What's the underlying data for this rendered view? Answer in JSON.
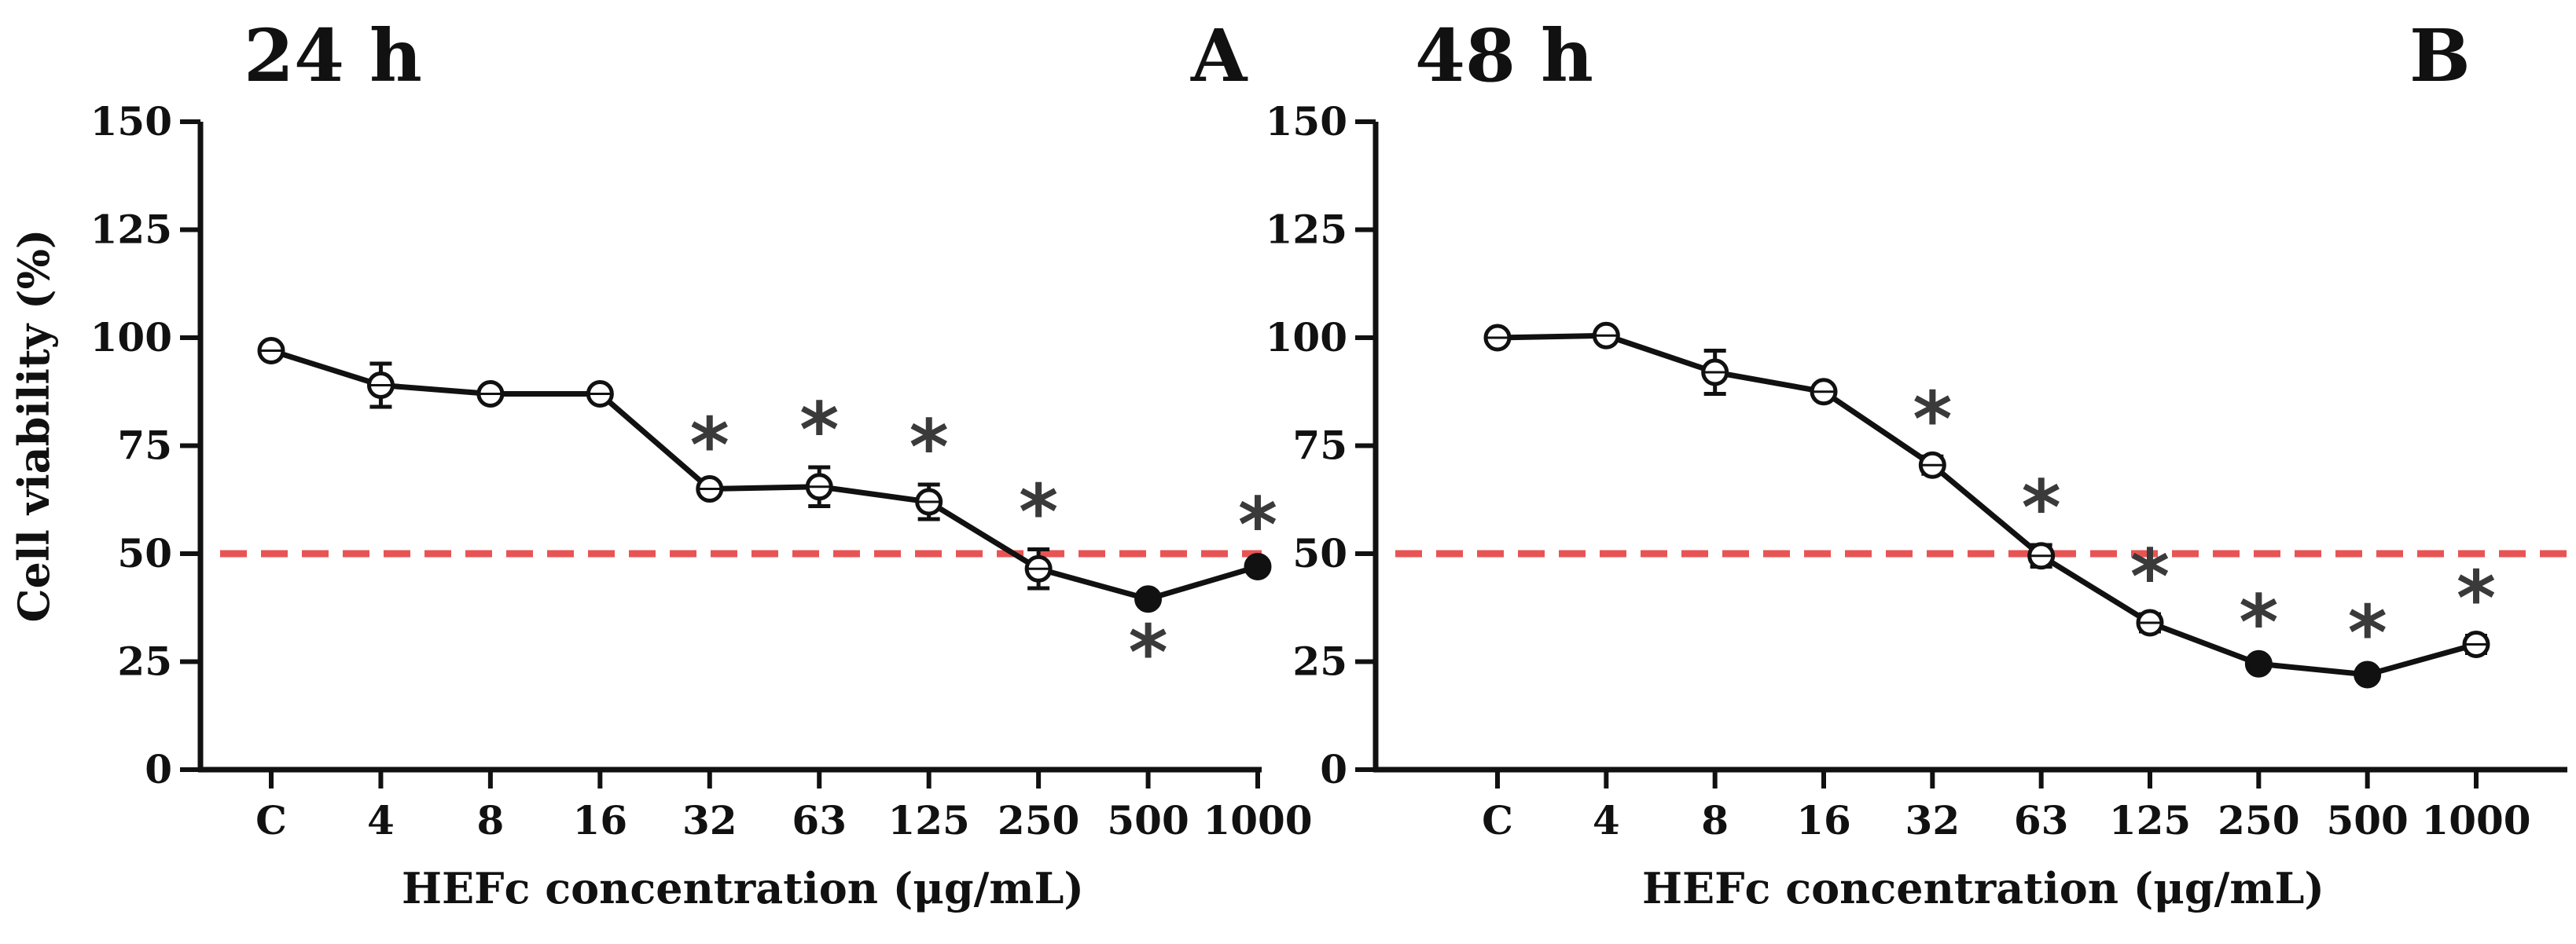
{
  "figure": {
    "ylabel": "Cell viability (%)",
    "threshold_color": "#e85454",
    "line_color": "#111111"
  },
  "chart_data": [
    {
      "type": "line",
      "title": "24 h",
      "panel_letter": "A",
      "xlabel": "HEFc concentration (μg/mL)",
      "ylabel": "Cell viability (%)",
      "categories": [
        "C",
        "4",
        "8",
        "16",
        "32",
        "63",
        "125",
        "250",
        "500",
        "1000"
      ],
      "values": [
        97,
        89,
        87,
        87,
        65,
        65.5,
        62,
        46.5,
        39.5,
        47
      ],
      "errors": [
        1,
        5,
        1,
        1,
        1.5,
        4.5,
        4,
        4.5,
        1,
        1
      ],
      "marker_filled": [
        false,
        false,
        false,
        false,
        false,
        false,
        false,
        false,
        true,
        true
      ],
      "significance": [
        "",
        "",
        "",
        "",
        "above",
        "above",
        "above",
        "above",
        "below",
        "above"
      ],
      "significance_symbol": "*",
      "threshold": 50,
      "ylim": [
        0,
        150
      ],
      "yticks": [
        0,
        25,
        50,
        75,
        100,
        125,
        150
      ],
      "ytick_labels": [
        "0",
        "25",
        "50",
        "75",
        "100",
        "125",
        "150"
      ]
    },
    {
      "type": "line",
      "title": "48 h",
      "panel_letter": "B",
      "xlabel": "HEFc concentration (μg/mL)",
      "ylabel": "",
      "categories": [
        "C",
        "4",
        "8",
        "16",
        "32",
        "63",
        "125",
        "250",
        "500",
        "1000"
      ],
      "values": [
        100,
        100.5,
        92,
        87.5,
        70.5,
        49.5,
        34,
        24.5,
        22,
        29
      ],
      "errors": [
        1,
        1,
        5,
        1,
        2,
        2.5,
        2,
        1,
        1,
        2
      ],
      "marker_filled": [
        false,
        false,
        false,
        false,
        false,
        false,
        false,
        true,
        true,
        false
      ],
      "significance": [
        "",
        "",
        "",
        "",
        "above",
        "above",
        "above",
        "above",
        "above",
        "above"
      ],
      "significance_symbol": "*",
      "threshold": 50,
      "ylim": [
        0,
        150
      ],
      "yticks": [
        0,
        25,
        50,
        75,
        100,
        125,
        150
      ],
      "ytick_labels": [
        "0",
        "25",
        "50",
        "75",
        "100",
        "125",
        "150"
      ]
    }
  ]
}
